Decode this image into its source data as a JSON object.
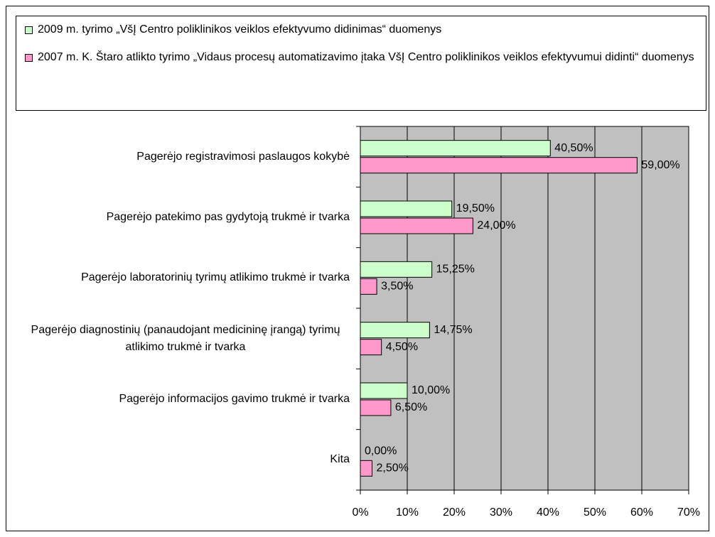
{
  "chart_data": {
    "type": "bar",
    "orientation": "horizontal",
    "categories": [
      "Pagerėjo registravimosi paslaugos kokybė",
      "Pagerėjo patekimo pas gydytoją trukmė ir tvarka",
      "Pagerėjo laboratorinių tyrimų atlikimo trukmė ir tvarka",
      "Pagerėjo diagnostinių (panaudojant medicininę įrangą) tyrimų atlikimo trukmė ir tvarka",
      "Pagerėjo informacijos gavimo trukmė ir tvarka",
      "Kita"
    ],
    "series": [
      {
        "name": "2009 m. tyrimo „VšĮ Centro poliklinikos veiklos efektyvumo didinimas“ duomenys",
        "color": "#ccffcc",
        "values": [
          40.5,
          19.5,
          15.25,
          14.75,
          10,
          0
        ],
        "value_labels": [
          "40,50%",
          "19,50%",
          "15,25%",
          "14,75%",
          "10,00%",
          "0,00%"
        ]
      },
      {
        "name": "2007 m. K. Štaro atlikto tyrimo „Vidaus procesų automatizavimo įtaka VšĮ Centro poliklinikos veiklos efektyvumui didinti“ duomenys",
        "color": "#ff99cc",
        "values": [
          59,
          24,
          3.5,
          4.5,
          6.5,
          2.5
        ],
        "value_labels": [
          "59,00%",
          "24,00%",
          "3,50%",
          "4,50%",
          "6,50%",
          "2,50%"
        ]
      }
    ],
    "xlim": [
      0,
      70
    ],
    "xticks": [
      {
        "value": 0,
        "label": "0%"
      },
      {
        "value": 10,
        "label": "10%"
      },
      {
        "value": 20,
        "label": "20%"
      },
      {
        "value": 30,
        "label": "30%"
      },
      {
        "value": 40,
        "label": "40%"
      },
      {
        "value": 50,
        "label": "50%"
      },
      {
        "value": 60,
        "label": "60%"
      },
      {
        "value": 70,
        "label": "70%"
      }
    ],
    "grid": true,
    "plot_background": "#c0c0c0",
    "legend": "top"
  }
}
